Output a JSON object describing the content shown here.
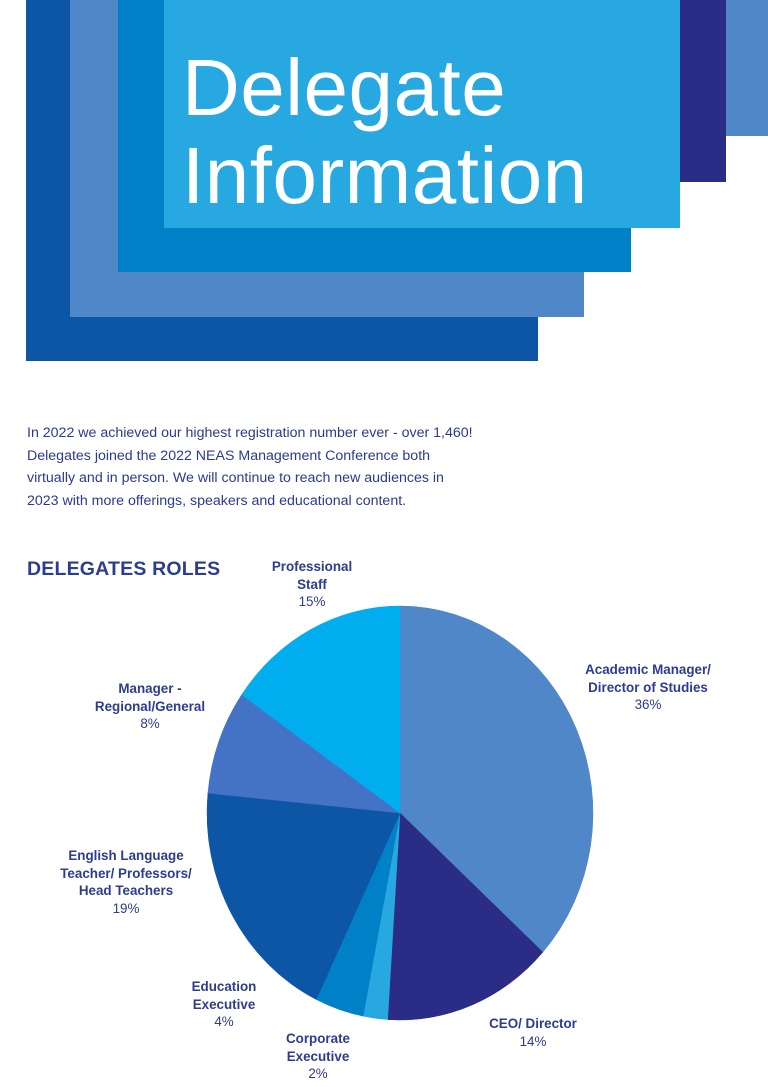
{
  "page": {
    "title_lines": [
      "Delegate",
      "Information"
    ],
    "intro": "In 2022 we achieved our highest registration number ever - over 1,460! Delegates joined the 2022 NEAS Management Conference both virtually and in person. We will continue to reach new audiences in 2023 with more offerings, speakers and educational content.",
    "section_heading": "DELEGATES ROLES"
  },
  "colors": {
    "title_text": "#ffffff",
    "body_text": "#2a3b8f",
    "band_dark_blue": "#0d55a5",
    "band_mid_blue": "#4f87c8",
    "band_blue": "#0080c6",
    "band_light_blue": "#27a8e0",
    "band_navy": "#2a2c85"
  },
  "chart_data": {
    "type": "pie",
    "title": "DELEGATES ROLES",
    "unit": "%",
    "slices": [
      {
        "label": "Academic Manager/\nDirector of Studies",
        "value": 36,
        "pct_label": "36%",
        "color": "#4f87c8"
      },
      {
        "label": "CEO/ Director",
        "value": 14,
        "pct_label": "14%",
        "color": "#2a2c85"
      },
      {
        "label": "Corporate\nExecutive",
        "value": 2,
        "pct_label": "2%",
        "color": "#27a8e0"
      },
      {
        "label": "Education\nExecutive",
        "value": 4,
        "pct_label": "4%",
        "color": "#0080c6"
      },
      {
        "label": "English Language\nTeacher/ Professors/\nHead Teachers",
        "value": 19,
        "pct_label": "19%",
        "color": "#0d55a5"
      },
      {
        "label": "Manager -\nRegional/General",
        "value": 8,
        "pct_label": "8%",
        "color": "#4472c4"
      },
      {
        "label": "Professional\nStaff",
        "value": 15,
        "pct_label": "15%",
        "color": "#00aeef"
      }
    ]
  }
}
